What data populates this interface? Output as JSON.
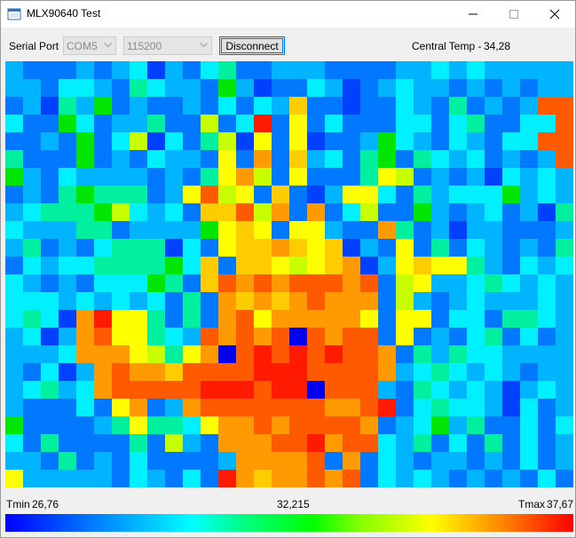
{
  "window": {
    "title": "MLX90640 Test",
    "icon": "app-window-icon",
    "controls": [
      "minimize-icon",
      "maximize-icon",
      "close-icon"
    ]
  },
  "toolbar": {
    "serial_port_label": "Serial Port",
    "port_value": "COM5",
    "baud_value": "115200",
    "disconnect_label": "Disconnect",
    "central_temp_label": "Central Temp -",
    "central_temp_value": "34,28"
  },
  "scale": {
    "tmin_label": "Tmin",
    "tmin_value": "26,76",
    "mid_value": "32,215",
    "tmax_label": "Tmax",
    "tmax_value": "37,67"
  },
  "heatmap": {
    "cols": 32,
    "rows": 24,
    "colormap": [
      "#0000ff",
      "#00ffff",
      "#00ff00",
      "#ffff00",
      "#ff0000"
    ],
    "cells": [
      "9AAA9A98B9A87AA999AAAA9989899999",
      "99A889A7899A69BAA89BA9899A9A9A99",
      "A9B796A9AA9A8A893AABAA89A7A9A911",
      "8AA68A997AA5A80A4A8AAA88A87AA881",
      "AA9A6A85B8A75B4A4BAA9689A89A8811",
      "7AAA6A9A899A4A2A398A76A7898A9A91",
      "69A89999A9A7425A4AAA745A9A9B8989",
      "A9A76777A94154A3AB9448A798886989",
      "9877765898A33152A2A85AA69A98A9B7",
      "899977A99996434A449AA27A9B99AAA9",
      "97A9A8777B8A4332343B9A4A7A89A9A7",
      "A89887777683A3345432B9434479A898",
      "89A9A88867A3121211121A5499878989",
      "888989898A7A232321222A59A9899989",
      "878B20447A7A214222224A44A88A7789",
      "98B9214478912121C1211A4A9A87A8A9",
      "999822245742C101010112A797889999",
      "9A8B9212231111000111129878989A99",
      "98798211111000100C1119A78989B989",
      "9AAA8A42A9211111112210A87889B8A9",
      "6AAAA9747784221211112A98697AA8A8",
      "8A7AAAA7A59A222110211897A8A7A8A9",
      "99A7A9A8AAAA922221A2A89A99A9A8A9",
      "499999A89A8A02322121A8989A9A9A8A"
    ]
  }
}
